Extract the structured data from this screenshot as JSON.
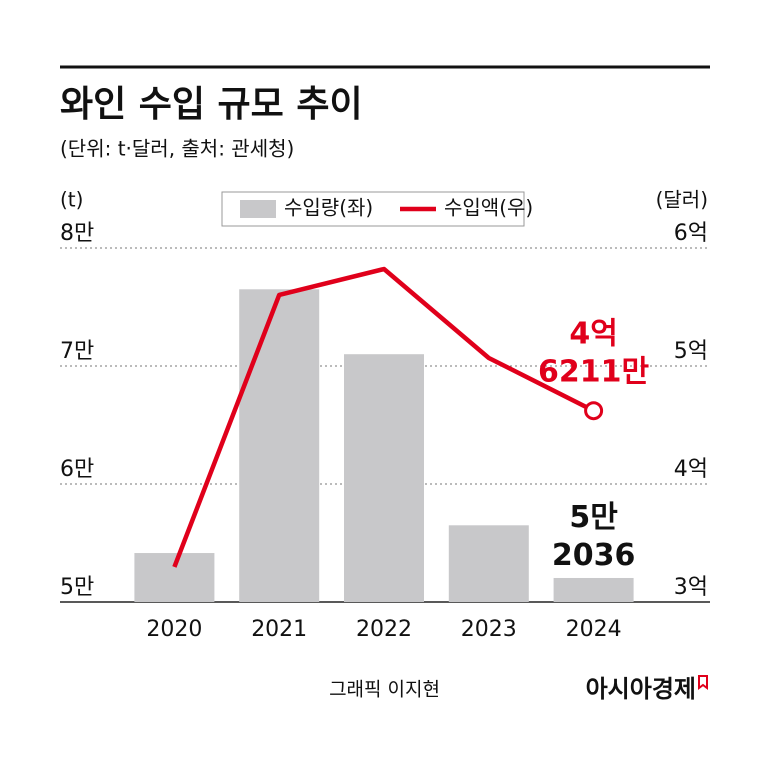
{
  "chart_data": {
    "type": "bar-line",
    "title": "와인 수입 규모 추이",
    "subtitle": "(단위: t·달러, 출처: 관세청)",
    "y_label": "(t)",
    "y2_label": "(달러)",
    "categories": [
      "2020",
      "2021",
      "2022",
      "2023",
      "2024"
    ],
    "series": [
      {
        "name": "수입량(좌)",
        "type": "bar",
        "color": "#c8c8ca",
        "axis": "y",
        "values": [
          54150,
          76500,
          71000,
          56500,
          52036
        ],
        "value_labels": [
          null,
          null,
          null,
          null,
          "5만 2036"
        ]
      },
      {
        "name": "수입액(우)",
        "type": "line",
        "color": "#e0001b",
        "axis": "y2",
        "values": [
          329700000,
          560200000,
          582200000,
          506800000,
          462110000
        ],
        "value_labels": [
          null,
          null,
          null,
          null,
          "4억 6211만"
        ]
      }
    ],
    "ylim": [
      50000,
      80000
    ],
    "yticks": [
      {
        "value": 50000,
        "label": "5만"
      },
      {
        "value": 60000,
        "label": "6만"
      },
      {
        "value": 70000,
        "label": "7만"
      },
      {
        "value": 80000,
        "label": "8만"
      }
    ],
    "y2lim": [
      300000000,
      600000000
    ],
    "y2ticks": [
      {
        "value": 300000000,
        "label": "3억"
      },
      {
        "value": 400000000,
        "label": "4억"
      },
      {
        "value": 500000000,
        "label": "5억"
      },
      {
        "value": 600000000,
        "label": "6억"
      }
    ],
    "grid": true,
    "credit": "그래픽 이지현",
    "source_brand": "아시아경제"
  }
}
